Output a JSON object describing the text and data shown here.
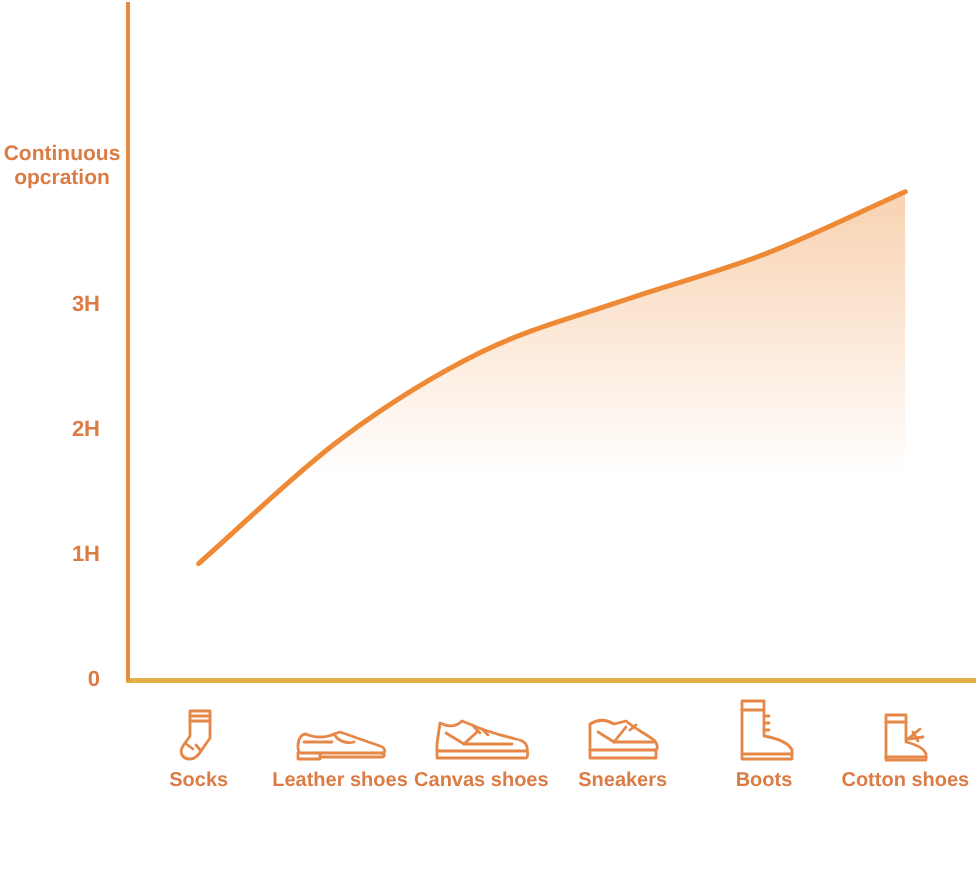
{
  "chart_data": {
    "type": "area",
    "ylabel": "Continuous opcration",
    "categories": [
      "Socks",
      "Leather shoes",
      "Canvas shoes",
      "Sneakers",
      "Boots",
      "Cotton shoes"
    ],
    "values": [
      0.93,
      1.92,
      2.62,
      3.03,
      3.4,
      3.9
    ],
    "color": "#ee8a35",
    "ylim": [
      0,
      5.4
    ],
    "yticks": [
      0,
      {
        "value": 1,
        "label": "1H"
      },
      {
        "value": 2,
        "label": "2H"
      },
      {
        "value": 3,
        "label": "3H"
      }
    ]
  }
}
